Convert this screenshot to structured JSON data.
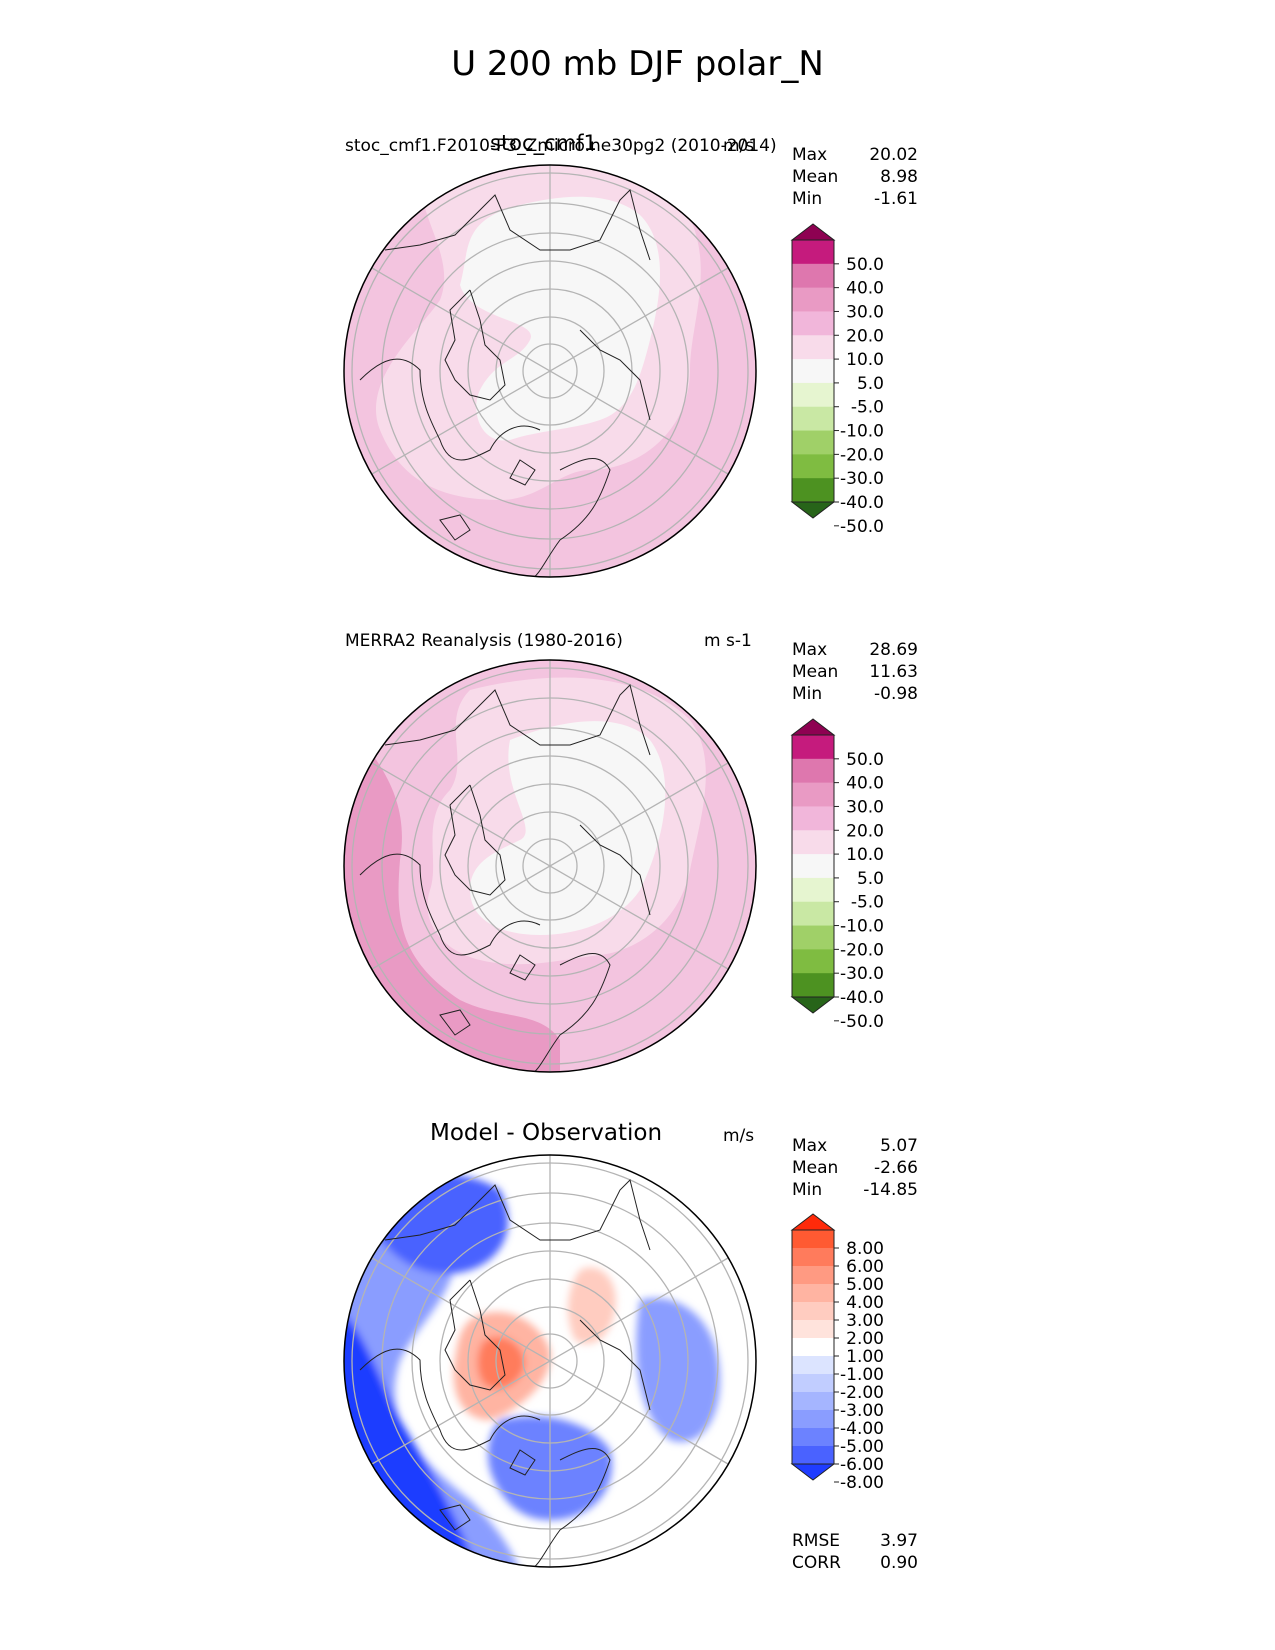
{
  "title": "U 200 mb DJF polar_N",
  "panels": [
    {
      "left_label": "stoc_cmf1.F2010-P3_Zmicro.ne30pg2 (2010-2014)",
      "center_label": "stoc_cmf1",
      "right_label": "m/s",
      "stats": [
        {
          "label": "Max",
          "value": "20.02"
        },
        {
          "label": "Mean",
          "value": "8.98"
        },
        {
          "label": "Min",
          "value": "-1.61"
        }
      ]
    },
    {
      "left_label": "MERRA2 Reanalysis (1980-2016)",
      "center_label": "",
      "right_label": "m s-1",
      "stats": [
        {
          "label": "Max",
          "value": "28.69"
        },
        {
          "label": "Mean",
          "value": "11.63"
        },
        {
          "label": "Min",
          "value": "-0.98"
        }
      ]
    },
    {
      "left_label": "",
      "center_label": "Model - Observation",
      "right_label": "m/s",
      "stats": [
        {
          "label": "Max",
          "value": "5.07"
        },
        {
          "label": "Mean",
          "value": "-2.66"
        },
        {
          "label": "Min",
          "value": "-14.85"
        }
      ],
      "bottom_stats": [
        {
          "label": "RMSE",
          "value": "3.97"
        },
        {
          "label": "CORR",
          "value": "0.90"
        }
      ]
    }
  ],
  "colorbars": [
    {
      "name": "field",
      "ticks": [
        "50.0",
        "40.0",
        "30.0",
        "20.0",
        "10.0",
        "5.0",
        "-5.0",
        "-10.0",
        "-20.0",
        "-30.0",
        "-40.0",
        "-50.0"
      ],
      "colors_top_to_bottom": [
        "#8e0152",
        "#c51b7d",
        "#de77ae",
        "#e99ac4",
        "#f1b6da",
        "#f8dbea",
        "#f7f7f7",
        "#e6f5d0",
        "#c9e8a4",
        "#a0d068",
        "#7fbc41",
        "#4d9221",
        "#276419"
      ]
    },
    {
      "name": "diff",
      "ticks": [
        "8.00",
        "6.00",
        "5.00",
        "4.00",
        "3.00",
        "2.00",
        "1.00",
        "-1.00",
        "-2.00",
        "-3.00",
        "-4.00",
        "-5.00",
        "-6.00",
        "-8.00"
      ],
      "colors_top_to_bottom": [
        "#ff2a0a",
        "#ff5a32",
        "#ff7b5c",
        "#ff9a82",
        "#ffb4a2",
        "#ffccc0",
        "#ffe3dc",
        "#ffffff",
        "#dce4ff",
        "#c1cdff",
        "#a5b5ff",
        "#8a9dff",
        "#6c82ff",
        "#4a62ff",
        "#1f3cff"
      ]
    }
  ],
  "chart_data": [
    {
      "type": "heatmap",
      "projection": "north polar stereographic",
      "title": "stoc_cmf1",
      "units": "m/s",
      "stats": {
        "max": 20.02,
        "mean": 8.98,
        "min": -1.61
      },
      "levels": [
        -50,
        -40,
        -30,
        -20,
        -10,
        -5,
        5,
        10,
        20,
        30,
        40,
        50
      ]
    },
    {
      "type": "heatmap",
      "projection": "north polar stereographic",
      "title": "MERRA2 Reanalysis (1980-2016)",
      "units": "m s-1",
      "stats": {
        "max": 28.69,
        "mean": 11.63,
        "min": -0.98
      },
      "levels": [
        -50,
        -40,
        -30,
        -20,
        -10,
        -5,
        5,
        10,
        20,
        30,
        40,
        50
      ]
    },
    {
      "type": "heatmap",
      "projection": "north polar stereographic",
      "title": "Model - Observation",
      "units": "m/s",
      "stats": {
        "max": 5.07,
        "mean": -2.66,
        "min": -14.85,
        "rmse": 3.97,
        "corr": 0.9
      },
      "levels": [
        -8,
        -6,
        -5,
        -4,
        -3,
        -2,
        -1,
        1,
        2,
        3,
        4,
        5,
        6,
        8
      ]
    }
  ]
}
